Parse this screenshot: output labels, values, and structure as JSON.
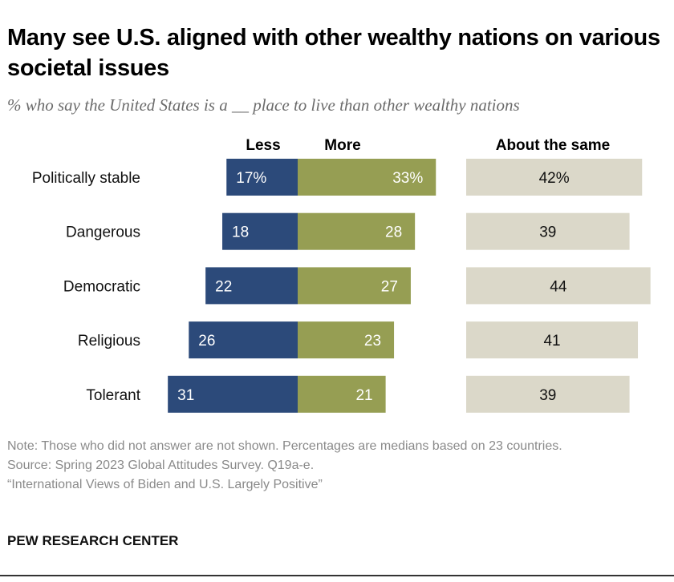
{
  "title": "Many see U.S. aligned with other wealthy nations on various societal issues",
  "subtitle": "% who say the United States is a __ place to live than other wealthy nations",
  "chart_data": {
    "type": "bar",
    "orientation": "horizontal",
    "layout": "diverging with separate column",
    "categories": [
      "Politically stable",
      "Dangerous",
      "Democratic",
      "Religious",
      "Tolerant"
    ],
    "series": [
      {
        "name": "Less",
        "values": [
          17,
          18,
          22,
          26,
          31
        ],
        "labels": [
          "17%",
          "18",
          "22",
          "26",
          "31"
        ],
        "color": "#2c4a7a"
      },
      {
        "name": "More",
        "values": [
          33,
          28,
          27,
          23,
          21
        ],
        "labels": [
          "33%",
          "28",
          "27",
          "23",
          "21"
        ],
        "color": "#969e53"
      },
      {
        "name": "About the same",
        "values": [
          42,
          39,
          44,
          41,
          39
        ],
        "labels": [
          "42%",
          "39",
          "44",
          "41",
          "39"
        ],
        "color": "#dbd8c9"
      }
    ],
    "unit": "%",
    "grid": false
  },
  "note": "Note: Those who did not answer are not shown. Percentages are medians based on 23 countries.",
  "source": "Source: Spring 2023 Global Attitudes Survey. Q19a-e.",
  "report": "“International Views of Biden and U.S. Largely Positive”",
  "brand": "PEW RESEARCH CENTER"
}
